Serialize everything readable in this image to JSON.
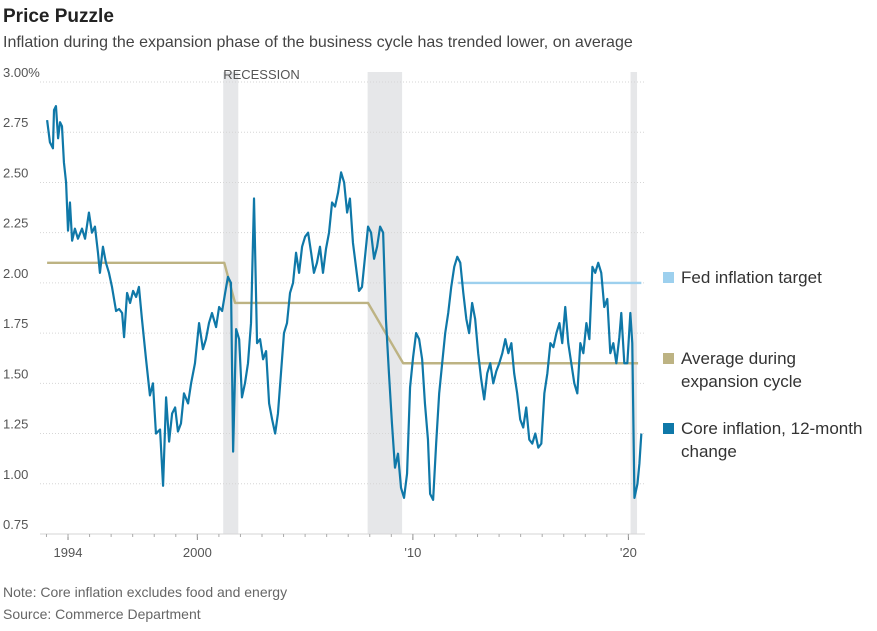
{
  "chart_data": {
    "type": "line",
    "title": "Price Puzzle",
    "subtitle": "Inflation during the expansion phase of the business cycle has trended lower, on average",
    "note": "Note: Core inflation excludes food and energy",
    "source": "Source: Commerce Department",
    "recession_label": "RECESSION",
    "recession_color": "#e6e7e9",
    "recessions": [
      [
        2001.2,
        2001.9
      ],
      [
        2007.9,
        2009.5
      ],
      [
        2020.1,
        2020.4
      ]
    ],
    "xlim": [
      1992.7,
      2020.77
    ],
    "ylim": [
      0.75,
      3.0
    ],
    "xticks": [
      1994,
      2000,
      {
        "value": 2010,
        "label": "'10"
      },
      {
        "value": 2020,
        "label": "'20"
      }
    ],
    "yticks": [
      {
        "value": 3.0,
        "label": "3.00%"
      },
      2.75,
      {
        "value": 2.5,
        "label": "2.50"
      },
      2.25,
      {
        "value": 2.0,
        "label": "2.00"
      },
      1.75,
      {
        "value": 1.5,
        "label": "1.50"
      },
      1.25,
      {
        "value": 1.0,
        "label": "1.00"
      },
      0.75
    ],
    "grid": true,
    "series": [
      {
        "name": "Core inflation, 12-month change",
        "color": "#0f78a8",
        "x": [
          1993.03,
          1993.16,
          1993.3,
          1993.35,
          1993.44,
          1993.54,
          1993.63,
          1993.72,
          1993.81,
          1993.91,
          1994.0,
          1994.09,
          1994.19,
          1994.32,
          1994.46,
          1994.65,
          1994.79,
          1994.97,
          1995.11,
          1995.25,
          1995.39,
          1995.48,
          1995.62,
          1995.76,
          1995.9,
          1996.04,
          1996.23,
          1996.37,
          1996.51,
          1996.6,
          1996.74,
          1996.88,
          1997.02,
          1997.16,
          1997.29,
          1997.43,
          1997.62,
          1997.8,
          1997.94,
          1998.08,
          1998.27,
          1998.41,
          1998.55,
          1998.69,
          1998.83,
          1998.97,
          1999.1,
          1999.24,
          1999.38,
          1999.57,
          1999.71,
          1999.89,
          2000.08,
          2000.26,
          2000.4,
          2000.54,
          2000.68,
          2000.87,
          2001.01,
          2001.15,
          2001.29,
          2001.42,
          2001.56,
          2001.66,
          2001.8,
          2001.94,
          2002.07,
          2002.21,
          2002.35,
          2002.49,
          2002.63,
          2002.77,
          2002.91,
          2003.05,
          2003.19,
          2003.33,
          2003.47,
          2003.61,
          2003.74,
          2003.88,
          2004.02,
          2004.16,
          2004.3,
          2004.44,
          2004.58,
          2004.72,
          2004.86,
          2005.0,
          2005.14,
          2005.28,
          2005.41,
          2005.55,
          2005.69,
          2005.83,
          2005.97,
          2006.11,
          2006.25,
          2006.39,
          2006.53,
          2006.67,
          2006.81,
          2006.95,
          2007.08,
          2007.22,
          2007.36,
          2007.5,
          2007.64,
          2007.78,
          2007.92,
          2008.06,
          2008.2,
          2008.34,
          2008.48,
          2008.62,
          2008.75,
          2008.89,
          2009.03,
          2009.17,
          2009.31,
          2009.45,
          2009.59,
          2009.73,
          2009.87,
          2010.01,
          2010.15,
          2010.29,
          2010.43,
          2010.56,
          2010.7,
          2010.8,
          2010.94,
          2011.08,
          2011.22,
          2011.36,
          2011.5,
          2011.64,
          2011.78,
          2011.92,
          2012.06,
          2012.2,
          2012.34,
          2012.48,
          2012.61,
          2012.75,
          2012.89,
          2013.03,
          2013.17,
          2013.31,
          2013.45,
          2013.59,
          2013.73,
          2013.87,
          2014.01,
          2014.15,
          2014.29,
          2014.43,
          2014.57,
          2014.7,
          2014.84,
          2014.98,
          2015.12,
          2015.26,
          2015.4,
          2015.54,
          2015.68,
          2015.82,
          2015.96,
          2016.1,
          2016.24,
          2016.38,
          2016.52,
          2016.66,
          2016.8,
          2016.93,
          2017.07,
          2017.21,
          2017.35,
          2017.49,
          2017.63,
          2017.77,
          2017.91,
          2018.05,
          2018.19,
          2018.33,
          2018.46,
          2018.6,
          2018.74,
          2018.88,
          2019.02,
          2019.16,
          2019.3,
          2019.44,
          2019.58,
          2019.67,
          2019.81,
          2019.95,
          2020.09,
          2020.18,
          2020.28,
          2020.42,
          2020.51,
          2020.6
        ],
        "values": [
          2.81,
          2.7,
          2.67,
          2.86,
          2.88,
          2.72,
          2.8,
          2.78,
          2.6,
          2.5,
          2.26,
          2.4,
          2.21,
          2.27,
          2.22,
          2.27,
          2.22,
          2.35,
          2.25,
          2.28,
          2.15,
          2.05,
          2.18,
          2.1,
          2.05,
          1.98,
          1.86,
          1.87,
          1.85,
          1.73,
          1.95,
          1.9,
          1.96,
          1.93,
          1.98,
          1.82,
          1.62,
          1.44,
          1.5,
          1.25,
          1.27,
          0.99,
          1.43,
          1.21,
          1.35,
          1.38,
          1.26,
          1.3,
          1.45,
          1.4,
          1.5,
          1.6,
          1.8,
          1.67,
          1.72,
          1.8,
          1.85,
          1.78,
          1.88,
          1.86,
          1.95,
          2.03,
          2.0,
          1.16,
          1.77,
          1.72,
          1.43,
          1.5,
          1.6,
          1.8,
          2.42,
          1.7,
          1.72,
          1.62,
          1.66,
          1.4,
          1.32,
          1.25,
          1.35,
          1.55,
          1.75,
          1.8,
          1.95,
          2.0,
          2.15,
          2.05,
          2.18,
          2.23,
          2.25,
          2.15,
          2.05,
          2.1,
          2.18,
          2.05,
          2.17,
          2.25,
          2.4,
          2.38,
          2.45,
          2.55,
          2.5,
          2.35,
          2.42,
          2.2,
          2.08,
          1.96,
          1.98,
          2.13,
          2.28,
          2.25,
          2.12,
          2.18,
          2.28,
          2.25,
          1.82,
          1.55,
          1.3,
          1.08,
          1.15,
          0.98,
          0.93,
          1.05,
          1.48,
          1.63,
          1.75,
          1.72,
          1.62,
          1.4,
          1.22,
          0.95,
          0.92,
          1.2,
          1.45,
          1.6,
          1.75,
          1.85,
          1.98,
          2.08,
          2.13,
          2.1,
          1.95,
          1.82,
          1.75,
          1.9,
          1.82,
          1.65,
          1.52,
          1.42,
          1.55,
          1.6,
          1.5,
          1.56,
          1.6,
          1.65,
          1.72,
          1.65,
          1.7,
          1.55,
          1.45,
          1.32,
          1.28,
          1.38,
          1.22,
          1.2,
          1.25,
          1.18,
          1.2,
          1.45,
          1.55,
          1.7,
          1.68,
          1.75,
          1.8,
          1.7,
          1.88,
          1.7,
          1.6,
          1.5,
          1.45,
          1.7,
          1.65,
          1.8,
          1.72,
          2.08,
          2.05,
          2.1,
          2.05,
          1.88,
          1.92,
          1.65,
          1.7,
          1.6,
          1.73,
          1.85,
          1.6,
          1.6,
          1.85,
          1.7,
          0.93,
          1.0,
          1.1,
          1.25
        ]
      },
      {
        "name": "Average during expansion cycle",
        "color": "#bdb383",
        "x": [
          1993.03,
          2001.25,
          2001.75,
          2007.92,
          2009.55,
          2020.45
        ],
        "values": [
          2.1,
          2.1,
          1.9,
          1.9,
          1.6,
          1.6
        ]
      },
      {
        "name": "Fed inflation target",
        "color": "#9dd0ee",
        "x": [
          2012.1,
          2020.6
        ],
        "values": [
          2.0,
          2.0
        ]
      }
    ]
  }
}
